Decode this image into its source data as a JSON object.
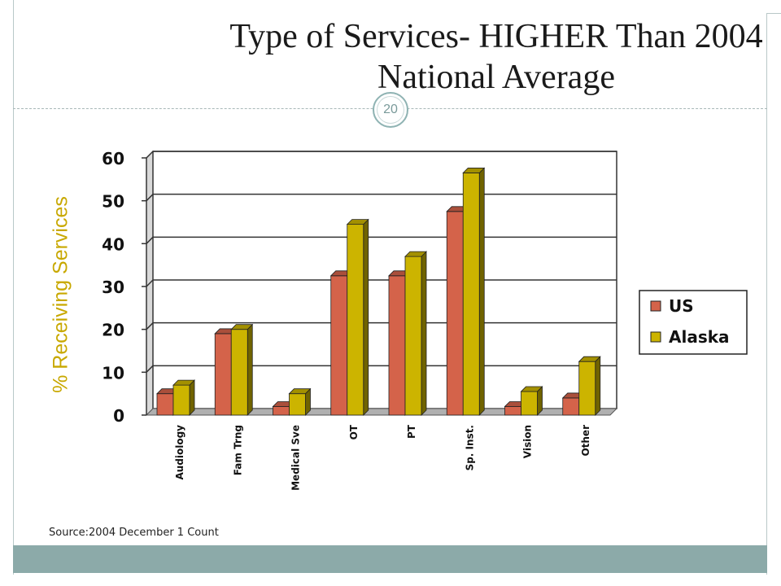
{
  "slide": {
    "title": "Type of Services- HIGHER Than 2004 National Average",
    "number": "20",
    "source": "Source:2004 December 1 Count"
  },
  "chart_data": {
    "type": "bar",
    "title": "",
    "xlabel": "",
    "ylabel": "% Receiving Services",
    "ylim": [
      0,
      60
    ],
    "yticks": [
      0,
      10,
      20,
      30,
      40,
      50,
      60
    ],
    "grid": true,
    "legend_position": "right",
    "categories": [
      "Audiology",
      "Fam Trng",
      "Medical Sve",
      "OT",
      "PT",
      "Sp. Inst.",
      "Vision",
      "Other"
    ],
    "series": [
      {
        "name": "US",
        "values": [
          5,
          19,
          2,
          32.5,
          32.5,
          47.5,
          2,
          4
        ],
        "color": "#d4634a"
      },
      {
        "name": "Alaska",
        "values": [
          7,
          20,
          5,
          44.5,
          37,
          56.5,
          5.5,
          12.5
        ],
        "color": "#ccb400"
      }
    ]
  }
}
